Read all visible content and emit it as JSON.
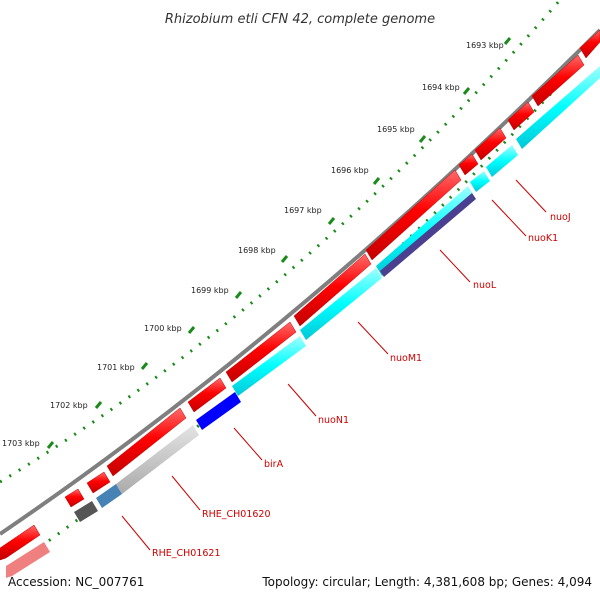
{
  "title": "Rhizobium etli CFN 42, complete genome",
  "accession": "Accession: NC_007761",
  "summary": "Topology: circular; Length: 4,381,608 bp; Genes: 4,094",
  "ticks": [
    {
      "label": "1693 kbp"
    },
    {
      "label": "1694 kbp"
    },
    {
      "label": "1695 kbp"
    },
    {
      "label": "1696 kbp"
    },
    {
      "label": "1697 kbp"
    },
    {
      "label": "1698 kbp"
    },
    {
      "label": "1699 kbp"
    },
    {
      "label": "1700 kbp"
    },
    {
      "label": "1701 kbp"
    },
    {
      "label": "1702 kbp"
    },
    {
      "label": "1703 kbp"
    }
  ],
  "genes": [
    {
      "name": "nuoJ"
    },
    {
      "name": "nuoK1"
    },
    {
      "name": "nuoL"
    },
    {
      "name": "nuoM1"
    },
    {
      "name": "nuoN1"
    },
    {
      "name": "birA"
    },
    {
      "name": "RHE_CH01620"
    },
    {
      "name": "RHE_CH01621"
    }
  ],
  "colors": {
    "backbone": "#7f7f7f",
    "cds_red": "#ff0000",
    "cds_red_edge": "#c00000",
    "cyan_band": "#00ffff",
    "dark_purple": "#4b3f8f",
    "blue": "#0000ff",
    "light_gray": "#c8c8c8",
    "steel_blue": "#4682b4",
    "dark_gray": "#555555",
    "pink": "#f08080",
    "tick_green": "#1a8a1a",
    "label_red": "#cc0000"
  }
}
